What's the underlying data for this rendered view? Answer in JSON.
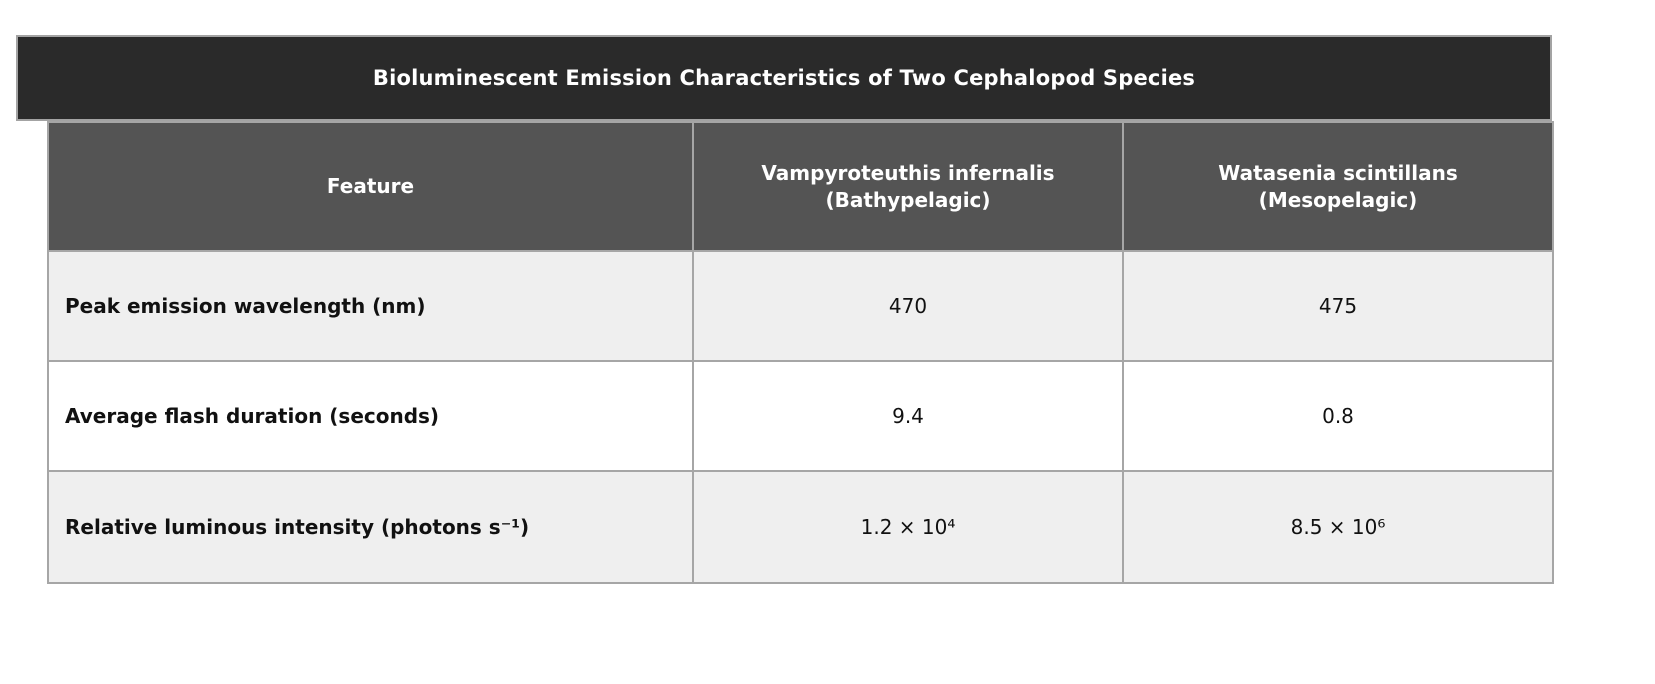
{
  "table": {
    "title": "Bioluminescent Emission Characteristics of Two Cephalopod Species",
    "columns": [
      {
        "label": "Feature"
      },
      {
        "label": "Vampyroteuthis infernalis\n(Bathypelagic)"
      },
      {
        "label": "Watasenia scintillans\n(Mesopelagic)"
      }
    ],
    "rows": [
      {
        "feature": "Peak emission wavelength (nm)",
        "values": [
          "470",
          "475"
        ]
      },
      {
        "feature": "Average flash duration (seconds)",
        "values": [
          "9.4",
          "0.8"
        ]
      },
      {
        "feature": "Relative luminous intensity (photons s⁻¹)",
        "values": [
          "1.2 × 10⁴",
          "8.5 × 10⁶"
        ]
      }
    ],
    "colors": {
      "title_background": "#2a2a2a",
      "header_background": "#545454",
      "header_text": "#ffffff",
      "row_alt_background": "#efefef",
      "row_background": "#ffffff",
      "border": "#a6a6a6",
      "body_text": "#111111"
    }
  },
  "chart_data": {
    "type": "table",
    "title": "Bioluminescent Emission Characteristics of Two Cephalopod Species",
    "columns": [
      "Feature",
      "Vampyroteuthis infernalis (Bathypelagic)",
      "Watasenia scintillans (Mesopelagic)"
    ],
    "rows": [
      [
        "Peak emission wavelength (nm)",
        470,
        475
      ],
      [
        "Average flash duration (seconds)",
        9.4,
        0.8
      ],
      [
        "Relative luminous intensity (photons s⁻¹)",
        "1.2 × 10⁴",
        "8.5 × 10⁶"
      ]
    ],
    "notes": {
      "relative_luminous_intensity_numeric": [
        12000,
        8500000
      ]
    }
  }
}
